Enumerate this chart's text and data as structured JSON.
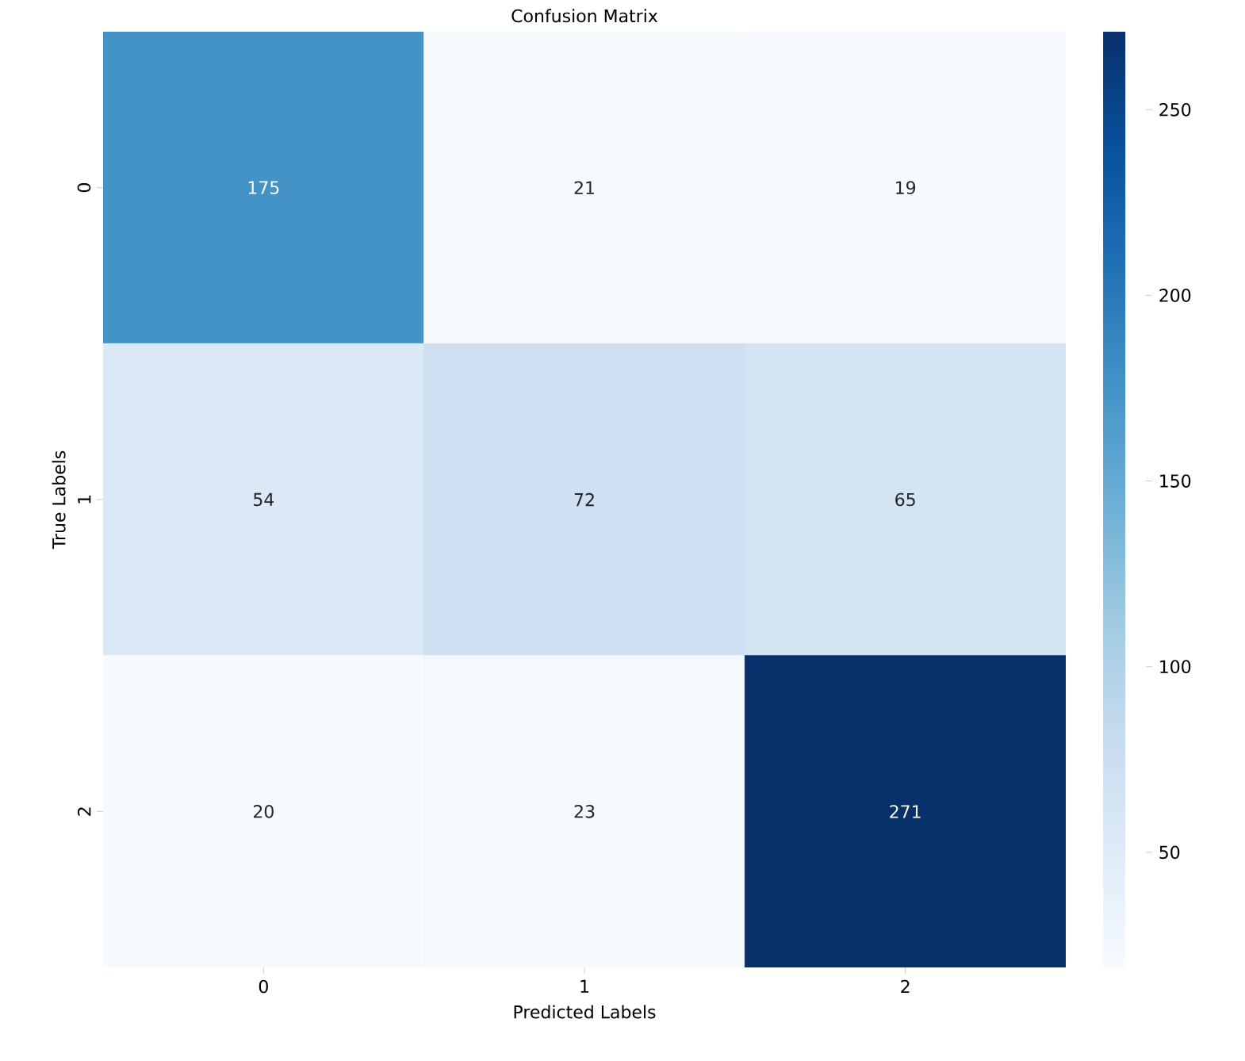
{
  "chart_data": {
    "type": "heatmap",
    "title": "Confusion Matrix",
    "xlabel": "Predicted Labels",
    "ylabel": "True Labels",
    "categories": [
      "0",
      "1",
      "2"
    ],
    "y_categories": [
      "0",
      "1",
      "2"
    ],
    "cells": [
      [
        175,
        21,
        19
      ],
      [
        54,
        72,
        65
      ],
      [
        20,
        23,
        271
      ]
    ],
    "data_labels": true,
    "clim": [
      19,
      271
    ],
    "cticks": [
      50,
      100,
      150,
      200,
      250
    ]
  }
}
